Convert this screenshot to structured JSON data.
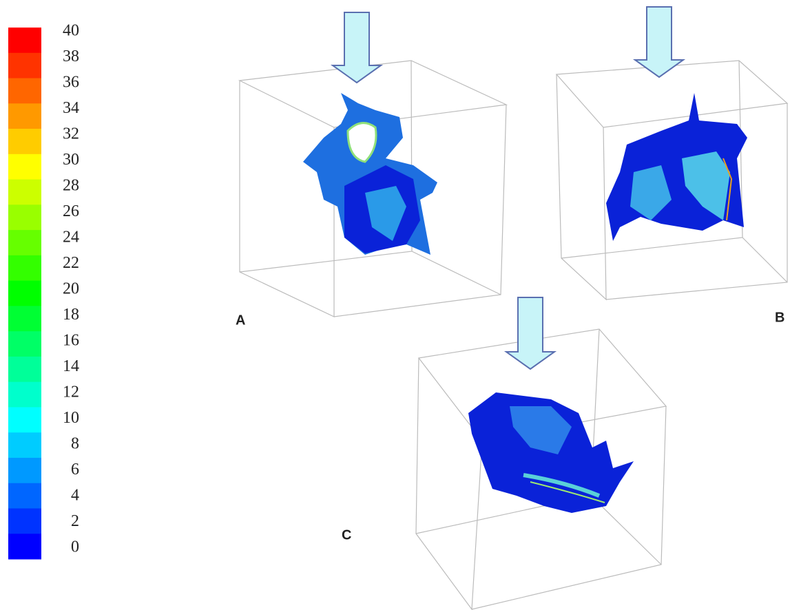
{
  "colorbar": {
    "labels": [
      "40",
      "38",
      "36",
      "34",
      "32",
      "30",
      "28",
      "26",
      "24",
      "22",
      "20",
      "18",
      "16",
      "14",
      "12",
      "10",
      "8",
      "6",
      "4",
      "2",
      "0"
    ]
  },
  "panels": [
    {
      "label": "A"
    },
    {
      "label": "B"
    },
    {
      "label": "C"
    }
  ]
}
